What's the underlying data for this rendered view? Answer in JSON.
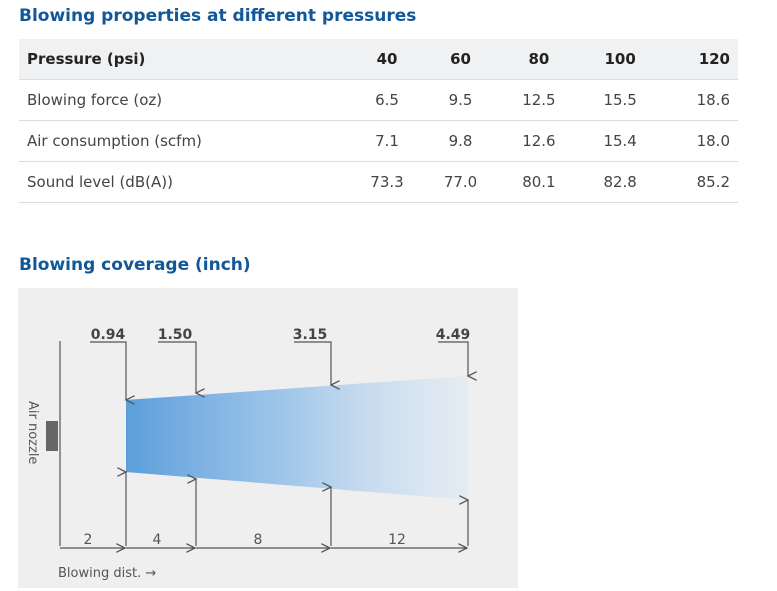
{
  "properties": {
    "title": "Blowing properties at different pressures",
    "header": {
      "label": "Pressure (psi)",
      "values": [
        "40",
        "60",
        "80",
        "100",
        "120"
      ]
    },
    "rows": [
      {
        "label": "Blowing force (oz)",
        "values": [
          "6.5",
          "9.5",
          "12.5",
          "15.5",
          "18.6"
        ]
      },
      {
        "label": "Air consumption (scfm)",
        "values": [
          "7.1",
          "9.8",
          "12.6",
          "15.4",
          "18.0"
        ]
      },
      {
        "label": "Sound level (dB(A))",
        "values": [
          "73.3",
          "77.0",
          "80.1",
          "82.8",
          "85.2"
        ]
      }
    ]
  },
  "coverage": {
    "title": "Blowing coverage (inch)",
    "nozzle_label": "Air nozzle",
    "widths": [
      "0.94",
      "1.50",
      "3.15",
      "4.49"
    ],
    "distances": [
      "2",
      "4",
      "8",
      "12"
    ],
    "axis_label": "Blowing dist. →",
    "colors": {
      "panel": "#efefef",
      "beam": "#5b9edb",
      "line": "#555555"
    }
  }
}
